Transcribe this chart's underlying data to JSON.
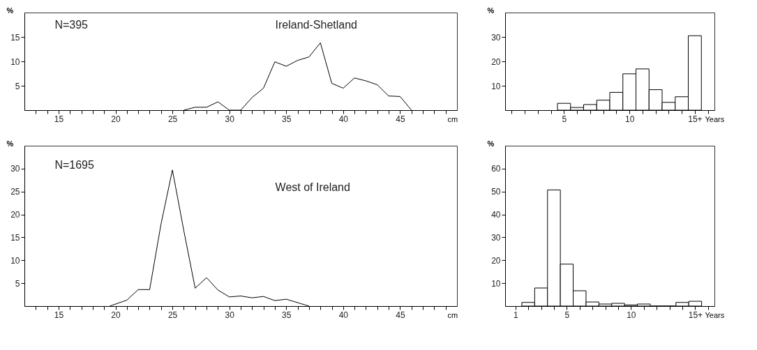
{
  "chart_data": [
    {
      "type": "line",
      "x": [
        26,
        27,
        28,
        29,
        30,
        31,
        32,
        33,
        34,
        35,
        36,
        37,
        38,
        39,
        40,
        41,
        42,
        43,
        44,
        45,
        46
      ],
      "series": [
        {
          "color": "#000000",
          "values": [
            0,
            0.6,
            0.6,
            1.7,
            0,
            0,
            2.6,
            4.5,
            9.9,
            9.0,
            10.2,
            10.9,
            13.8,
            5.5,
            4.5,
            6.6,
            6.0,
            5.2,
            2.9,
            2.8,
            0
          ]
        }
      ],
      "xlim": [
        12,
        50
      ],
      "ylim": [
        0,
        20
      ],
      "xticks": [
        {
          "value": 13,
          "label": null
        },
        {
          "value": 14,
          "label": null
        },
        15,
        {
          "value": 16,
          "label": null
        },
        {
          "value": 17,
          "label": null
        },
        {
          "value": 18,
          "label": null
        },
        {
          "value": 19,
          "label": null
        },
        20,
        {
          "value": 21,
          "label": null
        },
        {
          "value": 22,
          "label": null
        },
        {
          "value": 23,
          "label": null
        },
        {
          "value": 24,
          "label": null
        },
        25,
        {
          "value": 26,
          "label": null
        },
        {
          "value": 27,
          "label": null
        },
        {
          "value": 28,
          "label": null
        },
        {
          "value": 29,
          "label": null
        },
        30,
        {
          "value": 31,
          "label": null
        },
        {
          "value": 32,
          "label": null
        },
        {
          "value": 33,
          "label": null
        },
        {
          "value": 34,
          "label": null
        },
        35,
        {
          "value": 36,
          "label": null
        },
        {
          "value": 37,
          "label": null
        },
        {
          "value": 38,
          "label": null
        },
        {
          "value": 39,
          "label": null
        },
        40,
        {
          "value": 41,
          "label": null
        },
        {
          "value": 42,
          "label": null
        },
        {
          "value": 43,
          "label": null
        },
        {
          "value": 44,
          "label": null
        },
        45,
        {
          "value": 46,
          "label": null
        },
        {
          "value": 47,
          "label": null
        },
        {
          "value": 48,
          "label": null
        },
        {
          "value": 49,
          "label": null
        }
      ],
      "yticks": [
        5,
        10,
        15
      ],
      "xlabel": "cm",
      "ylabel": "%",
      "grid": false,
      "annotations": [
        "N=395",
        "Ireland-Shetland"
      ]
    },
    {
      "type": "histogram",
      "bins": [
        4.5,
        5.5,
        6.5,
        7.5,
        8.5,
        9.5,
        10.5,
        11.5,
        12.5,
        13.5,
        14.5,
        15.5
      ],
      "series": [
        {
          "color": "#ffffff",
          "values": [
            2.8,
            1.1,
            2.3,
            4.1,
            7.3,
            14.9,
            16.9,
            8.4,
            3.2,
            5.5,
            30.5
          ]
        }
      ],
      "xlim": [
        0.5,
        16.5
      ],
      "ylim": [
        0,
        40
      ],
      "xticks": [
        {
          "value": 1,
          "label": null
        },
        {
          "value": 2,
          "label": null
        },
        {
          "value": 3,
          "label": null
        },
        {
          "value": 4,
          "label": null
        },
        5,
        {
          "value": 6,
          "label": null
        },
        {
          "value": 7,
          "label": null
        },
        {
          "value": 8,
          "label": null
        },
        {
          "value": 9,
          "label": null
        },
        10,
        {
          "value": 11,
          "label": null
        },
        {
          "value": 12,
          "label": null
        },
        {
          "value": 13,
          "label": null
        },
        {
          "value": 14,
          "label": null
        },
        {
          "value": 15,
          "label": "15+"
        },
        {
          "value": 16,
          "label": null
        }
      ],
      "yticks": [
        10,
        20,
        30
      ],
      "xlabel": "Years",
      "ylabel": "%",
      "grid": false
    },
    {
      "type": "line",
      "x": [
        19.5,
        21,
        22,
        23,
        24,
        25,
        26,
        27,
        28,
        29,
        30,
        31,
        32,
        33,
        34,
        35,
        37
      ],
      "series": [
        {
          "color": "#000000",
          "values": [
            0,
            1.3,
            3.6,
            3.6,
            17.9,
            29.7,
            16.5,
            3.9,
            6.2,
            3.5,
            2.0,
            2.2,
            1.8,
            2.1,
            1.2,
            1.5,
            0
          ]
        }
      ],
      "xlim": [
        12,
        50
      ],
      "ylim": [
        0,
        35
      ],
      "xticks": [
        {
          "value": 13,
          "label": null
        },
        {
          "value": 14,
          "label": null
        },
        15,
        {
          "value": 16,
          "label": null
        },
        {
          "value": 17,
          "label": null
        },
        {
          "value": 18,
          "label": null
        },
        {
          "value": 19,
          "label": null
        },
        20,
        {
          "value": 21,
          "label": null
        },
        {
          "value": 22,
          "label": null
        },
        {
          "value": 23,
          "label": null
        },
        {
          "value": 24,
          "label": null
        },
        25,
        {
          "value": 26,
          "label": null
        },
        {
          "value": 27,
          "label": null
        },
        {
          "value": 28,
          "label": null
        },
        {
          "value": 29,
          "label": null
        },
        30,
        {
          "value": 31,
          "label": null
        },
        {
          "value": 32,
          "label": null
        },
        {
          "value": 33,
          "label": null
        },
        {
          "value": 34,
          "label": null
        },
        35,
        {
          "value": 36,
          "label": null
        },
        {
          "value": 37,
          "label": null
        },
        {
          "value": 38,
          "label": null
        },
        {
          "value": 39,
          "label": null
        },
        40,
        {
          "value": 41,
          "label": null
        },
        {
          "value": 42,
          "label": null
        },
        {
          "value": 43,
          "label": null
        },
        {
          "value": 44,
          "label": null
        },
        45,
        {
          "value": 46,
          "label": null
        },
        {
          "value": 47,
          "label": null
        },
        {
          "value": 48,
          "label": null
        },
        {
          "value": 49,
          "label": null
        }
      ],
      "yticks": [
        5,
        10,
        15,
        20,
        25,
        30
      ],
      "xlabel": "cm",
      "ylabel": "%",
      "grid": false,
      "annotations": [
        "N=1695",
        "West of Ireland"
      ]
    },
    {
      "type": "histogram",
      "bins": [
        1.5,
        2.5,
        3.5,
        4.5,
        5.5,
        6.5,
        7.5,
        8.5,
        9.5,
        10.5,
        11.5,
        12.5,
        13.5,
        14.5,
        15.5
      ],
      "series": [
        {
          "color": "#ffffff",
          "values": [
            1.6,
            7.9,
            50.7,
            18.3,
            6.7,
            1.8,
            0.9,
            1.2,
            0.5,
            0.9,
            0,
            0,
            1.6,
            2.1
          ]
        }
      ],
      "xlim": [
        0.2,
        16.5
      ],
      "ylim": [
        0,
        70
      ],
      "xticks": [
        1,
        {
          "value": 2,
          "label": null
        },
        {
          "value": 3,
          "label": null
        },
        {
          "value": 4,
          "label": null
        },
        5,
        {
          "value": 6,
          "label": null
        },
        {
          "value": 7,
          "label": null
        },
        {
          "value": 8,
          "label": null
        },
        {
          "value": 9,
          "label": null
        },
        10,
        {
          "value": 11,
          "label": null
        },
        {
          "value": 12,
          "label": null
        },
        {
          "value": 13,
          "label": null
        },
        {
          "value": 14,
          "label": null
        },
        {
          "value": 15,
          "label": "15+"
        },
        {
          "value": 16,
          "label": null
        }
      ],
      "yticks": [
        10,
        20,
        30,
        40,
        50,
        60
      ],
      "xlabel": "Years",
      "ylabel": "%",
      "grid": false
    }
  ]
}
